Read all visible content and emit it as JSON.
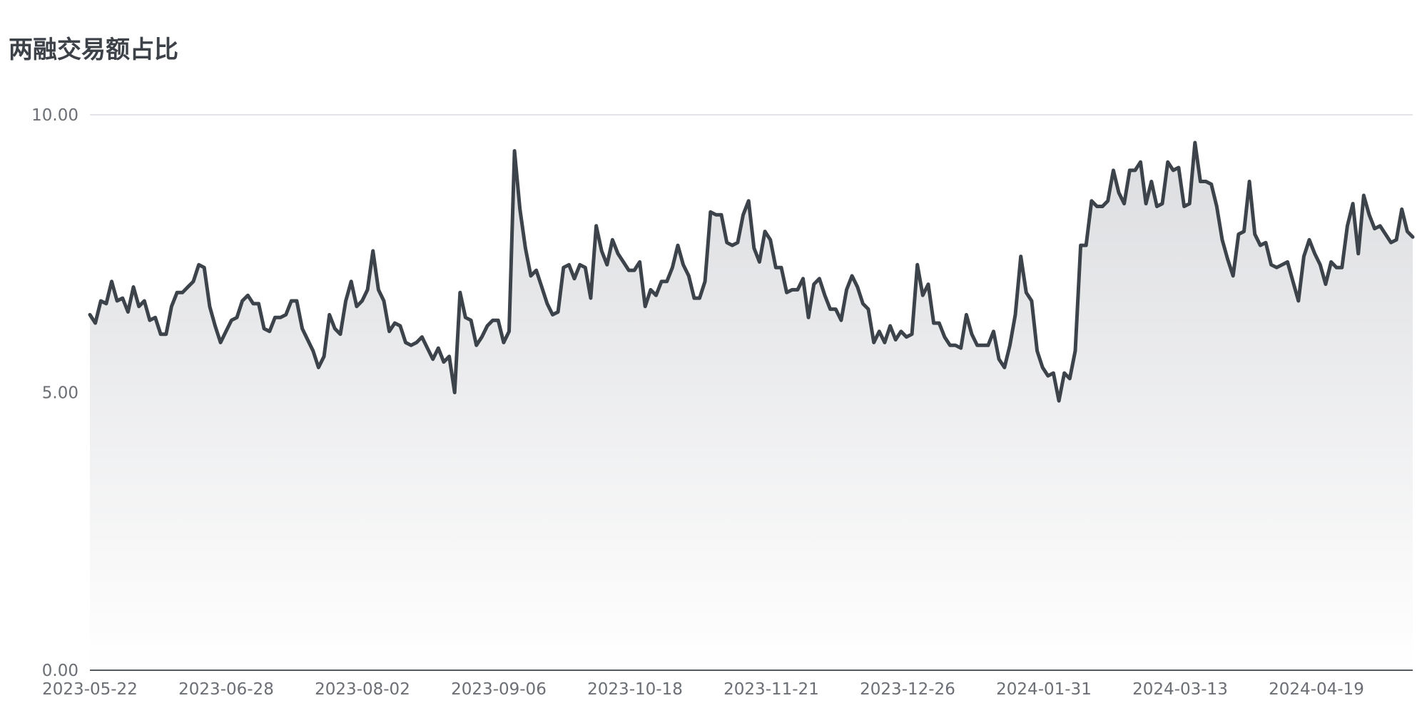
{
  "chart_data": {
    "type": "area",
    "title": "两融交易额占比",
    "xlabel": "",
    "ylabel": "",
    "ylim": [
      0,
      10
    ],
    "y_ticks": [
      "0.00",
      "5.00",
      "10.00"
    ],
    "x_ticks": [
      "2023-05-22",
      "2023-06-28",
      "2023-08-02",
      "2023-09-06",
      "2023-10-18",
      "2023-11-21",
      "2023-12-26",
      "2024-01-31",
      "2024-03-13",
      "2024-04-19"
    ],
    "grid": true,
    "legend": "none",
    "colors": {
      "line": "#3d434b",
      "fill_top": "#dcdde0",
      "fill_bottom": "#ffffff",
      "grid": "#d9dbe0",
      "axis": "#555a61"
    },
    "series": [
      {
        "values": [
          6.4,
          6.25,
          6.65,
          6.6,
          7.0,
          6.65,
          6.7,
          6.45,
          6.9,
          6.55,
          6.65,
          6.3,
          6.35,
          6.05,
          6.05,
          6.55,
          6.8,
          6.8,
          6.9,
          7.0,
          7.3,
          7.25,
          6.55,
          6.2,
          5.9,
          6.1,
          6.3,
          6.35,
          6.65,
          6.75,
          6.6,
          6.6,
          6.15,
          6.1,
          6.35,
          6.35,
          6.4,
          6.65,
          6.65,
          6.15,
          5.95,
          5.75,
          5.45,
          5.65,
          6.4,
          6.15,
          6.05,
          6.65,
          7.0,
          6.55,
          6.65,
          6.85,
          7.55,
          6.85,
          6.65,
          6.1,
          6.25,
          6.2,
          5.9,
          5.85,
          5.9,
          6.0,
          5.8,
          5.6,
          5.8,
          5.55,
          5.65,
          5.0,
          6.8,
          6.35,
          6.3,
          5.85,
          6.0,
          6.2,
          6.3,
          6.3,
          5.9,
          6.1,
          9.35,
          8.3,
          7.6,
          7.1,
          7.2,
          6.9,
          6.6,
          6.4,
          6.45,
          7.25,
          7.3,
          7.05,
          7.3,
          7.25,
          6.7,
          8.0,
          7.55,
          7.3,
          7.75,
          7.5,
          7.35,
          7.2,
          7.2,
          7.35,
          6.55,
          6.85,
          6.75,
          7.0,
          7.0,
          7.25,
          7.65,
          7.3,
          7.1,
          6.7,
          6.7,
          7.0,
          8.25,
          8.2,
          8.2,
          7.7,
          7.65,
          7.7,
          8.2,
          8.45,
          7.6,
          7.35,
          7.9,
          7.75,
          7.25,
          7.25,
          6.8,
          6.85,
          6.85,
          7.05,
          6.35,
          6.95,
          7.05,
          6.75,
          6.5,
          6.5,
          6.3,
          6.85,
          7.1,
          6.9,
          6.6,
          6.5,
          5.9,
          6.1,
          5.9,
          6.2,
          5.95,
          6.1,
          6.0,
          6.05,
          7.3,
          6.75,
          6.95,
          6.25,
          6.25,
          6.0,
          5.85,
          5.85,
          5.8,
          6.4,
          6.05,
          5.85,
          5.85,
          5.85,
          6.1,
          5.6,
          5.45,
          5.85,
          6.4,
          7.45,
          6.8,
          6.65,
          5.75,
          5.45,
          5.3,
          5.35,
          4.85,
          5.35,
          5.25,
          5.75,
          7.65,
          7.65,
          8.45,
          8.35,
          8.35,
          8.45,
          9.0,
          8.6,
          8.4,
          9.0,
          9.0,
          9.15,
          8.4,
          8.8,
          8.35,
          8.4,
          9.15,
          9.0,
          9.05,
          8.35,
          8.4,
          9.5,
          8.8,
          8.8,
          8.75,
          8.35,
          7.75,
          7.4,
          7.1,
          7.85,
          7.9,
          8.8,
          7.85,
          7.65,
          7.7,
          7.3,
          7.25,
          7.3,
          7.35,
          7.0,
          6.65,
          7.45,
          7.75,
          7.5,
          7.3,
          6.95,
          7.35,
          7.25,
          7.25,
          8.0,
          8.4,
          7.5,
          8.55,
          8.2,
          7.95,
          8.0,
          7.85,
          7.7,
          7.75,
          8.3,
          7.9,
          7.8
        ]
      }
    ]
  }
}
